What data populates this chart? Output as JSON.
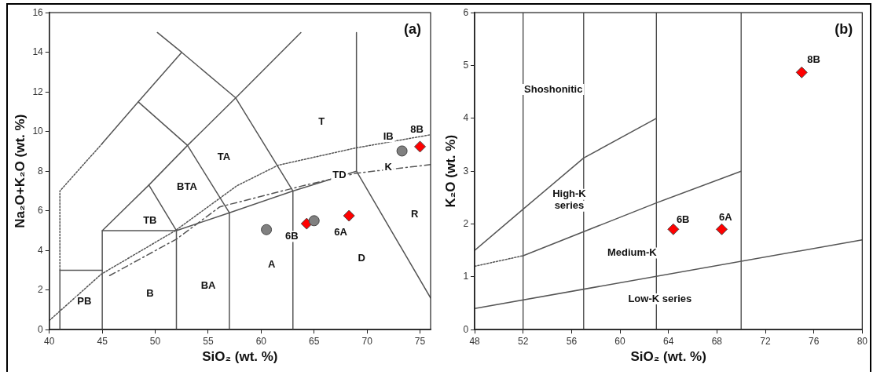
{
  "chart_data": [
    {
      "type": "scatter",
      "title": "(a)",
      "xlabel": "SiO₂ (wt. %)",
      "ylabel": "Na₂O+K₂O (wt. %)",
      "xlim": [
        40,
        76
      ],
      "xticks": [
        40,
        45,
        50,
        55,
        60,
        65,
        70,
        75
      ],
      "ylim": [
        0,
        16
      ],
      "yticks": [
        0,
        2,
        4,
        6,
        8,
        10,
        12,
        14,
        16
      ],
      "series": [
        {
          "type": "line",
          "color": "#555555",
          "line_style": "solid",
          "marker": "none",
          "x": [
            41,
            41,
            45
          ],
          "values": [
            0,
            3,
            3
          ]
        },
        {
          "type": "line",
          "color": "#555555",
          "line_style": "dotted",
          "marker": "none",
          "x": [
            41,
            41,
            45
          ],
          "values": [
            3,
            7,
            9.4
          ]
        },
        {
          "type": "line",
          "color": "#555555",
          "line_style": "solid",
          "marker": "none",
          "x": [
            45,
            45,
            52,
            52
          ],
          "values": [
            0,
            5,
            5,
            0
          ]
        },
        {
          "type": "line",
          "color": "#555555",
          "line_style": "solid",
          "marker": "none",
          "x": [
            45,
            49.4,
            53.05,
            57.6,
            63.75
          ],
          "values": [
            5,
            7.3,
            9.3,
            11.7,
            15
          ]
        },
        {
          "type": "line",
          "color": "#555555",
          "line_style": "solid",
          "marker": "none",
          "x": [
            52,
            49.4
          ],
          "values": [
            5,
            7.3
          ]
        },
        {
          "type": "line",
          "color": "#555555",
          "line_style": "solid",
          "marker": "none",
          "x": [
            45,
            48.4,
            52.5,
            50.2
          ],
          "values": [
            9.4,
            11.5,
            14,
            15
          ]
        },
        {
          "type": "line",
          "color": "#555555",
          "line_style": "solid",
          "marker": "none",
          "x": [
            48.4,
            53.05,
            57
          ],
          "values": [
            11.5,
            9.3,
            5.9
          ]
        },
        {
          "type": "line",
          "color": "#555555",
          "line_style": "solid",
          "marker": "none",
          "x": [
            52.5,
            57.6,
            63
          ],
          "values": [
            14,
            11.7,
            7
          ]
        },
        {
          "type": "line",
          "color": "#555555",
          "line_style": "solid",
          "marker": "none",
          "x": [
            52,
            57,
            63,
            69
          ],
          "values": [
            5,
            5.9,
            7,
            8
          ]
        },
        {
          "type": "line",
          "color": "#555555",
          "line_style": "solid",
          "marker": "none",
          "x": [
            57,
            57
          ],
          "values": [
            0,
            5.9
          ]
        },
        {
          "type": "line",
          "color": "#555555",
          "line_style": "solid",
          "marker": "none",
          "x": [
            63,
            63
          ],
          "values": [
            0,
            7
          ]
        },
        {
          "type": "line",
          "color": "#555555",
          "line_style": "solid",
          "marker": "none",
          "x": [
            69,
            69,
            76
          ],
          "values": [
            15,
            8,
            1.6
          ]
        },
        {
          "type": "line",
          "color": "#555555",
          "line_style": "dotted",
          "marker": "none",
          "x": [
            40,
            44.9,
            51.9,
            57.7,
            61.6,
            68.9,
            76
          ],
          "values": [
            0.46,
            2.8,
            5.0,
            7.26,
            8.3,
            9.17,
            9.84
          ]
        },
        {
          "type": "line",
          "color": "#555555",
          "line_style": "dashed",
          "marker": "none",
          "x": [
            45.7,
            52,
            56.1,
            63.9,
            69,
            76
          ],
          "values": [
            2.73,
            4.57,
            6.2,
            7.26,
            7.9,
            8.33
          ]
        },
        {
          "type": "scatter",
          "color": "#808080",
          "marker": "circle",
          "x": [
            60.5,
            65,
            73.3
          ],
          "values": [
            5.05,
            5.5,
            9.02
          ]
        },
        {
          "type": "scatter",
          "color": "#ff0000",
          "marker": "diamond",
          "x": [
            64.3,
            68.3,
            75
          ],
          "values": [
            5.35,
            5.75,
            9.24
          ]
        }
      ],
      "annotations": [
        "PB",
        "B",
        "BA",
        "A",
        "D",
        "R",
        "TB",
        "BTA",
        "TA",
        "T",
        "TD",
        "IB",
        "K",
        "6B",
        "6A",
        "8B"
      ]
    },
    {
      "type": "scatter",
      "title": "(b)",
      "xlabel": "SiO₂ (wt. %)",
      "ylabel": "K₂O (wt. %)",
      "xlim": [
        48,
        80
      ],
      "xticks": [
        48,
        52,
        56,
        60,
        64,
        68,
        72,
        76,
        80
      ],
      "ylim": [
        0,
        6
      ],
      "yticks": [
        0,
        1,
        2,
        3,
        4,
        5,
        6
      ],
      "ref_lines": [
        {
          "axis": "x",
          "value": 52,
          "color": "#333333"
        },
        {
          "axis": "x",
          "value": 57,
          "color": "#333333"
        },
        {
          "axis": "x",
          "value": 63,
          "color": "#333333"
        },
        {
          "axis": "x",
          "value": 70,
          "color": "#333333"
        }
      ],
      "series": [
        {
          "type": "line",
          "color": "#555555",
          "line_style": "solid",
          "marker": "none",
          "x": [
            48,
            80
          ],
          "values": [
            0.4,
            1.7
          ]
        },
        {
          "type": "line",
          "color": "#555555",
          "line_style": "dotted",
          "marker": "none",
          "x": [
            48,
            52
          ],
          "values": [
            1.2,
            1.4
          ]
        },
        {
          "type": "line",
          "color": "#555555",
          "line_style": "solid",
          "marker": "none",
          "x": [
            52,
            63,
            70
          ],
          "values": [
            1.4,
            2.4,
            3.0
          ]
        },
        {
          "type": "line",
          "color": "#555555",
          "line_style": "solid",
          "marker": "none",
          "x": [
            48,
            52,
            57,
            63
          ],
          "values": [
            1.5,
            2.28,
            3.25,
            4.0
          ]
        },
        {
          "type": "scatter",
          "color": "#ff0000",
          "marker": "diamond",
          "x": [
            64.4,
            68.4,
            75
          ],
          "values": [
            1.9,
            1.9,
            4.87
          ]
        }
      ],
      "annotations": [
        "Shoshonitic",
        "High-K\nseries",
        "Medium-K",
        "Low-K series",
        "6B",
        "6A",
        "8B"
      ]
    }
  ]
}
